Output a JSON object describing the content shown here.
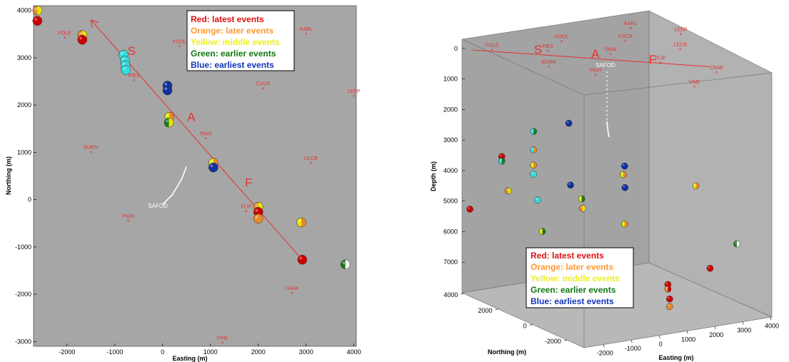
{
  "colors": {
    "red": "#cc0000",
    "orange": "#e88a2a",
    "yellow": "#e6e600",
    "green": "#1a7a1a",
    "blue": "#1030a0",
    "cyan": "#33dddd",
    "station": "#e83030",
    "safod": "#ffffff",
    "background": "#a6a6a6"
  },
  "legend": [
    {
      "label": "Red: latest events",
      "color": "#dd1111"
    },
    {
      "label": "Orange: later events",
      "color": "#ff9933"
    },
    {
      "label": "Yellow: middle events",
      "color": "#eeee22"
    },
    {
      "label": "Green: earlier events",
      "color": "#117711"
    },
    {
      "label": "Blue: earliest events",
      "color": "#1133bb"
    }
  ],
  "chart_data": [
    {
      "type": "scatter",
      "title": "",
      "xlabel": "Easting (m)",
      "ylabel": "Northing (m)",
      "xlim": [
        -2700,
        4050
      ],
      "ylim": [
        -3100,
        4100
      ],
      "xticks": [
        -2000,
        -1000,
        0,
        1000,
        2000,
        3000,
        4000
      ],
      "yticks": [
        -3000,
        -2000,
        -1000,
        0,
        1000,
        2000,
        3000,
        4000
      ],
      "grid": false,
      "legend_position": "top-center",
      "stations": [
        {
          "name": "POLE",
          "x": -2050,
          "y": 3400
        },
        {
          "name": "KOOL",
          "x": 350,
          "y": 3220
        },
        {
          "name": "KARL",
          "x": 3000,
          "y": 3480
        },
        {
          "name": "PIES",
          "x": -600,
          "y": 2500
        },
        {
          "name": "CVCR",
          "x": 2100,
          "y": 2330
        },
        {
          "name": "LEEP",
          "x": 4000,
          "y": 2170
        },
        {
          "name": "TANK",
          "x": 900,
          "y": 1270
        },
        {
          "name": "BURN",
          "x": -1500,
          "y": 980
        },
        {
          "name": "LCCB",
          "x": 3100,
          "y": 750
        },
        {
          "name": "FLIP",
          "x": 1750,
          "y": -270
        },
        {
          "name": "PIGH",
          "x": -720,
          "y": -470
        },
        {
          "name": "CRAK",
          "x": 2700,
          "y": -2000
        },
        {
          "name": "VINE",
          "x": 1250,
          "y": -3050
        }
      ],
      "fault_line": {
        "x": [
          -1500,
          2900
        ],
        "y": [
          3800,
          -1250
        ]
      },
      "segments": [
        {
          "label": "S",
          "x": -650,
          "y": 3060
        },
        {
          "label": "A",
          "x": 600,
          "y": 1660
        },
        {
          "label": "F",
          "x": 1800,
          "y": 270
        }
      ],
      "safod": {
        "label": "SAFOD",
        "path_x": [
          500,
          390,
          200,
          0
        ],
        "path_y": [
          700,
          420,
          100,
          -100
        ],
        "label_x": -100,
        "label_y": -170
      },
      "events": [
        {
          "x": -2620,
          "y": 4000,
          "c1": "orange",
          "c2": "yellow"
        },
        {
          "x": -2620,
          "y": 3780,
          "c1": "red",
          "c2": "red"
        },
        {
          "x": -1680,
          "y": 3480,
          "c1": "orange",
          "c2": "yellow"
        },
        {
          "x": -1680,
          "y": 3380,
          "c1": "red",
          "c2": "red"
        },
        {
          "x": -820,
          "y": 3060,
          "c1": "cyan",
          "c2": "cyan"
        },
        {
          "x": -790,
          "y": 2940,
          "c1": "cyan",
          "c2": "cyan"
        },
        {
          "x": -780,
          "y": 2840,
          "c1": "cyan",
          "c2": "cyan"
        },
        {
          "x": -770,
          "y": 2740,
          "c1": "cyan",
          "c2": "cyan"
        },
        {
          "x": 100,
          "y": 2410,
          "c1": "blue",
          "c2": "blue"
        },
        {
          "x": 100,
          "y": 2310,
          "c1": "blue",
          "c2": "blue"
        },
        {
          "x": 140,
          "y": 1750,
          "c1": "yellow",
          "c2": "orange"
        },
        {
          "x": 130,
          "y": 1630,
          "c1": "green",
          "c2": "yellow"
        },
        {
          "x": 1060,
          "y": 780,
          "c1": "yellow",
          "c2": "orange"
        },
        {
          "x": 1060,
          "y": 680,
          "c1": "blue",
          "c2": "blue"
        },
        {
          "x": 2000,
          "y": -150,
          "c1": "orange",
          "c2": "yellow"
        },
        {
          "x": 2000,
          "y": -260,
          "c1": "red",
          "c2": "red"
        },
        {
          "x": 2000,
          "y": -400,
          "c1": "orange",
          "c2": "orange"
        },
        {
          "x": 2900,
          "y": -480,
          "c1": "yellow",
          "c2": "orange"
        },
        {
          "x": 2920,
          "y": -1270,
          "c1": "red",
          "c2": "red"
        },
        {
          "x": 3820,
          "y": -1370,
          "c1": "green",
          "c2": "white"
        }
      ]
    },
    {
      "type": "scatter",
      "title": "",
      "xlabel": "Easting (m)",
      "ylabel": "Northing (m)",
      "zlabel": "Depth (m)",
      "xlim": [
        -2700,
        4050
      ],
      "ylim": [
        -3000,
        4100
      ],
      "zlim": [
        -300,
        8000
      ],
      "xticks": [
        -2000,
        -1000,
        0,
        1000,
        2000,
        3000,
        4000
      ],
      "yticks": [
        -2000,
        0,
        2000,
        4000
      ],
      "zticks": [
        0,
        1000,
        2000,
        3000,
        4000,
        5000,
        6000,
        7000
      ],
      "grid": false,
      "legend_position": "bottom-center",
      "stations": [
        {
          "name": "KARL",
          "x": 3000,
          "y": 3480,
          "z": 0
        },
        {
          "name": "LEEP",
          "x": 4000,
          "y": 2170,
          "z": 0
        },
        {
          "name": "KOOL",
          "x": 350,
          "y": 3220,
          "z": 0
        },
        {
          "name": "CVCR",
          "x": 2100,
          "y": 2330,
          "z": 0
        },
        {
          "name": "TANK",
          "x": 900,
          "y": 1270,
          "z": 0
        },
        {
          "name": "LCCB",
          "x": 3100,
          "y": 750,
          "z": 0
        },
        {
          "name": "POLE",
          "x": -2050,
          "y": 3400,
          "z": 0
        },
        {
          "name": "PIES",
          "x": -600,
          "y": 2500,
          "z": 0
        },
        {
          "name": "BURN",
          "x": -1500,
          "y": 980,
          "z": 0
        },
        {
          "name": "PIGH",
          "x": -720,
          "y": -470,
          "z": 0
        },
        {
          "name": "FLIP",
          "x": 1750,
          "y": -270,
          "z": 0
        },
        {
          "name": "CRAK",
          "x": 2700,
          "y": -2000,
          "z": 0
        },
        {
          "name": "VINE",
          "x": 1250,
          "y": -3050,
          "z": 0
        }
      ],
      "segments": [
        {
          "label": "S",
          "x": -700,
          "y": 2900,
          "z": 0
        },
        {
          "label": "A",
          "x": 600,
          "y": 1660,
          "z": 0
        },
        {
          "label": "F",
          "x": 1800,
          "y": 270,
          "z": 0
        }
      ],
      "safod": {
        "label": "SAFOD"
      },
      "events": [
        {
          "x": -2600,
          "y": 3800,
          "z": 5200,
          "c1": "red",
          "c2": "red"
        },
        {
          "x": -2650,
          "y": 1500,
          "z": 4000,
          "c1": "orange",
          "c2": "yellow"
        },
        {
          "x": -1700,
          "y": 3400,
          "z": 3500,
          "c1": "red",
          "c2": "red"
        },
        {
          "x": -1700,
          "y": 3400,
          "z": 3650,
          "c1": "cyan",
          "c2": "green"
        },
        {
          "x": -1600,
          "y": 1200,
          "z": 5400,
          "c1": "yellow",
          "c2": "green"
        },
        {
          "x": -800,
          "y": 3000,
          "z": 2700,
          "c1": "cyan",
          "c2": "green"
        },
        {
          "x": -800,
          "y": 3000,
          "z": 3300,
          "c1": "cyan",
          "c2": "orange"
        },
        {
          "x": -800,
          "y": 3000,
          "z": 3800,
          "c1": "yellow",
          "c2": "orange"
        },
        {
          "x": -800,
          "y": 3000,
          "z": 4100,
          "c1": "cyan",
          "c2": "cyan"
        },
        {
          "x": -780,
          "y": 2800,
          "z": 4900,
          "c1": "cyan",
          "c2": "cyan"
        },
        {
          "x": 100,
          "y": 2400,
          "z": 2400,
          "c1": "blue",
          "c2": "blue"
        },
        {
          "x": 100,
          "y": 2300,
          "z": 4400,
          "c1": "blue",
          "c2": "blue"
        },
        {
          "x": 130,
          "y": 1700,
          "z": 4700,
          "c1": "yellow",
          "c2": "green"
        },
        {
          "x": 130,
          "y": 1650,
          "z": 5000,
          "c1": "orange",
          "c2": "yellow"
        },
        {
          "x": 1060,
          "y": 700,
          "z": 3500,
          "c1": "blue",
          "c2": "blue"
        },
        {
          "x": 1060,
          "y": 780,
          "z": 3800,
          "c1": "yellow",
          "c2": "orange"
        },
        {
          "x": 1060,
          "y": 680,
          "z": 4200,
          "c1": "blue",
          "c2": "blue"
        },
        {
          "x": 1060,
          "y": 700,
          "z": 5400,
          "c1": "yellow",
          "c2": "orange"
        },
        {
          "x": 2900,
          "y": -480,
          "z": 4100,
          "c1": "yellow",
          "c2": "orange"
        },
        {
          "x": 2920,
          "y": -1270,
          "z": 6600,
          "c1": "red",
          "c2": "red"
        },
        {
          "x": 3820,
          "y": -1370,
          "z": 5900,
          "c1": "green",
          "c2": "white"
        },
        {
          "x": 2000,
          "y": -300,
          "z": 7250,
          "c1": "red",
          "c2": "red"
        },
        {
          "x": 2000,
          "y": -300,
          "z": 7400,
          "c1": "orange",
          "c2": "red"
        },
        {
          "x": 2000,
          "y": -400,
          "z": 7700,
          "c1": "red",
          "c2": "red"
        },
        {
          "x": 2000,
          "y": -400,
          "z": 7950,
          "c1": "orange",
          "c2": "orange"
        }
      ]
    }
  ]
}
